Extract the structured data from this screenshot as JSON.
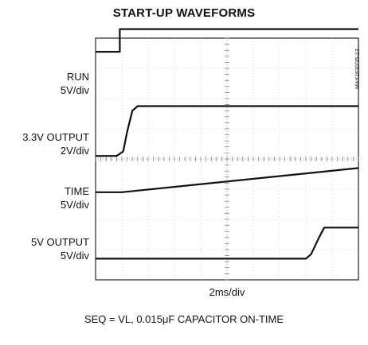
{
  "chart_data": {
    "type": "line",
    "title": "START-UP WAVEFORMS",
    "xlabel": "2ms/div",
    "caption": "SEQ = VL, 0.015μF CAPACITOR ON-TIME",
    "side_code": "MAX1630/35-13",
    "x_divisions": 10,
    "y_divisions": 8,
    "grid": true,
    "xlim": [
      0,
      10
    ],
    "series": [
      {
        "name": "RUN",
        "scale": "5V/div",
        "level_div": 7.6,
        "points": [
          [
            0,
            6.85
          ],
          [
            0.92,
            6.85
          ],
          [
            0.92,
            7.6
          ],
          [
            10,
            7.6
          ]
        ]
      },
      {
        "name": "3.3V OUTPUT",
        "scale": "2V/div",
        "level_div": 5.05,
        "points": [
          [
            0,
            3.4
          ],
          [
            0.8,
            3.4
          ],
          [
            1.05,
            3.55
          ],
          [
            1.2,
            4.2
          ],
          [
            1.4,
            4.9
          ],
          [
            1.6,
            5.05
          ],
          [
            10,
            5.05
          ]
        ]
      },
      {
        "name": "TIME",
        "scale": "5V/div",
        "level_div": 2.2,
        "points": [
          [
            0,
            2.2
          ],
          [
            1.0,
            2.2
          ],
          [
            10,
            3.0
          ]
        ]
      },
      {
        "name": "5V OUTPUT",
        "scale": "5V/div",
        "level_div": 0.0,
        "points": [
          [
            0,
            0.0
          ],
          [
            8.0,
            0.0
          ],
          [
            8.2,
            0.15
          ],
          [
            8.5,
            0.7
          ],
          [
            8.7,
            1.03
          ],
          [
            10,
            1.03
          ]
        ]
      }
    ]
  }
}
